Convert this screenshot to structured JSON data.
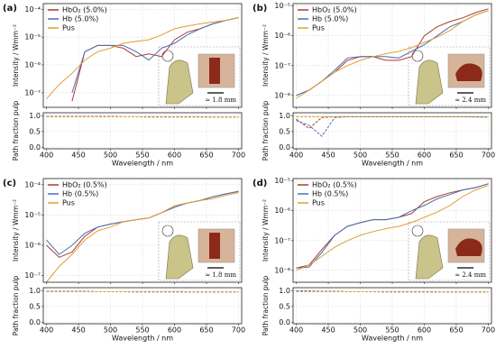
{
  "chart_data": [
    {
      "type": "line",
      "panel_label": "(a)",
      "ylabel": "Intensity / Wmm⁻²",
      "annotation": "≈ 1.8 mm",
      "log_y": true,
      "grid": true,
      "legend": "upper left",
      "x": [
        400,
        420,
        440,
        460,
        480,
        500,
        520,
        540,
        560,
        580,
        600,
        620,
        640,
        660,
        680,
        700
      ],
      "xlim": [
        395,
        705
      ],
      "xticks": [
        400,
        450,
        500,
        550,
        600,
        650,
        700
      ],
      "ylim": [
        3e-08,
        0.00016
      ],
      "yticks": [
        {
          "value": 1e-07,
          "label": "10⁻⁷"
        },
        {
          "value": 1e-06,
          "label": "10⁻⁶"
        },
        {
          "value": 1e-05,
          "label": "10⁻⁵"
        },
        {
          "value": 0.0001,
          "label": "10⁻⁴"
        }
      ],
      "series": [
        {
          "name": "HbO₂ (5.0%)",
          "color": "#b03a2e",
          "values": [
            null,
            null,
            5e-08,
            3e-06,
            5e-06,
            5e-06,
            4e-06,
            2e-06,
            2.5e-06,
            2e-06,
            8e-06,
            1.5e-05,
            2e-05,
            3e-05,
            4e-05,
            5e-05
          ]
        },
        {
          "name": "Hb (5.0%)",
          "color": "#4a6fb5",
          "values": [
            null,
            null,
            1e-07,
            3e-06,
            5e-06,
            5e-06,
            5e-06,
            3e-06,
            1.5e-06,
            4e-06,
            6e-06,
            1.2e-05,
            2e-05,
            3e-05,
            4e-05,
            5e-05
          ]
        },
        {
          "name": "Pus",
          "color": "#e0a030",
          "values": [
            6e-08,
            2e-07,
            5e-07,
            1.5e-06,
            3e-06,
            4e-06,
            6e-06,
            7e-06,
            8e-06,
            1.2e-05,
            2e-05,
            2.5e-05,
            3e-05,
            3.5e-05,
            4e-05,
            5e-05
          ]
        }
      ]
    },
    {
      "type": "line",
      "ylabel": "Path fraction pulp",
      "xlabel": "Wavelength / nm",
      "grid": true,
      "x": [
        400,
        420,
        440,
        460,
        480,
        500,
        520,
        540,
        560,
        580,
        600,
        620,
        640,
        660,
        680,
        700
      ],
      "xlim": [
        395,
        705
      ],
      "xticks": [
        400,
        450,
        500,
        550,
        600,
        650,
        700
      ],
      "ylim": [
        -0.05,
        1.1
      ],
      "yticks": [
        {
          "value": 0,
          "label": "0.0"
        },
        0.5,
        {
          "value": 1,
          "label": "1.0"
        }
      ],
      "series": [
        {
          "color": "#b03a2e",
          "values": [
            0.98,
            0.98,
            0.98,
            0.98,
            0.98,
            0.98,
            0.97,
            0.97,
            0.97,
            0.97,
            0.97,
            0.97,
            0.97,
            0.96,
            0.96,
            0.96
          ]
        },
        {
          "color": "#4a6fb5",
          "values": [
            0.98,
            0.98,
            0.98,
            0.98,
            0.98,
            0.98,
            0.97,
            0.97,
            0.97,
            0.97,
            0.97,
            0.97,
            0.97,
            0.96,
            0.96,
            0.96
          ]
        },
        {
          "color": "#e0a030",
          "values": [
            0.97,
            0.97,
            0.97,
            0.97,
            0.97,
            0.97,
            0.97,
            0.97,
            0.96,
            0.96,
            0.96,
            0.96,
            0.96,
            0.96,
            0.96,
            0.96
          ]
        }
      ]
    },
    {
      "type": "line",
      "panel_label": "(b)",
      "ylabel": "Intensity / Wmm⁻²",
      "annotation": "≈ 2.4 mm",
      "log_y": true,
      "grid": true,
      "legend": "upper left",
      "x": [
        400,
        420,
        440,
        460,
        480,
        500,
        520,
        540,
        560,
        580,
        600,
        620,
        640,
        660,
        680,
        700
      ],
      "xlim": [
        395,
        705
      ],
      "xticks": [
        400,
        450,
        500,
        550,
        600,
        650,
        700
      ],
      "ylim": [
        4e-09,
        1.2e-05
      ],
      "yticks": [
        {
          "value": 1e-08,
          "label": "10⁻⁸"
        },
        {
          "value": 1e-07,
          "label": "10⁻⁷"
        },
        {
          "value": 1e-06,
          "label": "10⁻⁶"
        },
        {
          "value": 1e-05,
          "label": "10⁻⁵"
        }
      ],
      "series": [
        {
          "name": "HbO₂ (5.0%)",
          "color": "#b03a2e",
          "values": [
            1e-08,
            1.5e-08,
            3e-08,
            6e-08,
            1.5e-07,
            2e-07,
            2e-07,
            1.5e-07,
            1.5e-07,
            2e-07,
            1e-06,
            2e-06,
            3e-06,
            4e-06,
            6e-06,
            8e-06
          ]
        },
        {
          "name": "Hb (5.0%)",
          "color": "#4a6fb5",
          "values": [
            1e-08,
            1.5e-08,
            3e-08,
            7e-08,
            1.8e-07,
            2e-07,
            2e-07,
            2e-07,
            1.8e-07,
            3e-07,
            5e-07,
            1e-06,
            2e-06,
            3e-06,
            5e-06,
            7e-06
          ]
        },
        {
          "name": "Pus",
          "color": "#e0a030",
          "values": [
            8e-09,
            1.5e-08,
            3e-08,
            6e-08,
            1e-07,
            1.5e-07,
            2e-07,
            2.5e-07,
            3e-07,
            4e-07,
            6e-07,
            9e-07,
            1.5e-06,
            3e-06,
            5e-06,
            7e-06
          ]
        }
      ]
    },
    {
      "type": "line",
      "ylabel": "Path fraction pulp",
      "xlabel": "Wavelength / nm",
      "grid": true,
      "x": [
        400,
        420,
        440,
        460,
        480,
        500,
        520,
        540,
        560,
        580,
        600,
        620,
        640,
        660,
        680,
        700
      ],
      "xlim": [
        395,
        705
      ],
      "xticks": [
        400,
        450,
        500,
        550,
        600,
        650,
        700
      ],
      "ylim": [
        -0.05,
        1.1
      ],
      "yticks": [
        {
          "value": 0,
          "label": "0.0"
        },
        0.5,
        {
          "value": 1,
          "label": "1.0"
        }
      ],
      "series": [
        {
          "color": "#b03a2e",
          "values": [
            0.9,
            0.6,
            0.95,
            0.97,
            0.97,
            0.97,
            0.97,
            0.97,
            0.97,
            0.97,
            0.97,
            0.97,
            0.97,
            0.97,
            0.97,
            0.96
          ]
        },
        {
          "color": "#4a6fb5",
          "values": [
            0.85,
            0.7,
            0.35,
            0.95,
            0.97,
            0.97,
            0.97,
            0.97,
            0.97,
            0.97,
            0.97,
            0.97,
            0.97,
            0.97,
            0.97,
            0.96
          ]
        },
        {
          "color": "#e0a030",
          "values": [
            0.97,
            0.97,
            0.97,
            0.97,
            0.97,
            0.97,
            0.97,
            0.97,
            0.97,
            0.97,
            0.97,
            0.97,
            0.97,
            0.97,
            0.96,
            0.96
          ]
        }
      ]
    },
    {
      "type": "line",
      "panel_label": "(c)",
      "ylabel": "Intensity / Wmm⁻²",
      "annotation": "≈ 1.8 mm",
      "log_y": true,
      "grid": true,
      "legend": "upper left",
      "x": [
        400,
        420,
        440,
        460,
        480,
        500,
        520,
        540,
        560,
        580,
        600,
        620,
        640,
        660,
        680,
        700
      ],
      "xlim": [
        395,
        705
      ],
      "xticks": [
        400,
        450,
        500,
        550,
        600,
        650,
        700
      ],
      "ylim": [
        6e-08,
        0.00016
      ],
      "yticks": [
        {
          "value": 1e-07,
          "label": "10⁻⁷"
        },
        {
          "value": 1e-06,
          "label": "10⁻⁶"
        },
        {
          "value": 1e-05,
          "label": "10⁻⁵"
        },
        {
          "value": 0.0001,
          "label": "10⁻⁴"
        }
      ],
      "series": [
        {
          "name": "HbO₂ (0.5%)",
          "color": "#b03a2e",
          "values": [
            1e-06,
            4e-07,
            6e-07,
            2e-06,
            4e-06,
            5e-06,
            6e-06,
            7e-06,
            8e-06,
            1.2e-05,
            2e-05,
            2.5e-05,
            3e-05,
            4e-05,
            5e-05,
            6e-05
          ]
        },
        {
          "name": "Hb (0.5%)",
          "color": "#4a6fb5",
          "values": [
            1.5e-06,
            5e-07,
            1e-06,
            2.5e-06,
            4e-06,
            5e-06,
            6e-06,
            7e-06,
            8e-06,
            1.2e-05,
            1.8e-05,
            2.5e-05,
            3e-05,
            4e-05,
            5e-05,
            6e-05
          ]
        },
        {
          "name": "Pus",
          "color": "#e0a030",
          "values": [
            6e-08,
            2e-07,
            5e-07,
            1.5e-06,
            3e-06,
            4e-06,
            6e-06,
            7e-06,
            8e-06,
            1.2e-05,
            2e-05,
            2.5e-05,
            3e-05,
            3.5e-05,
            4.5e-05,
            5.5e-05
          ]
        }
      ]
    },
    {
      "type": "line",
      "ylabel": "Path fraction pulp",
      "xlabel": "Wavelength / nm",
      "grid": true,
      "x": [
        400,
        420,
        440,
        460,
        480,
        500,
        520,
        540,
        560,
        580,
        600,
        620,
        640,
        660,
        680,
        700
      ],
      "xlim": [
        395,
        705
      ],
      "xticks": [
        400,
        450,
        500,
        550,
        600,
        650,
        700
      ],
      "ylim": [
        -0.05,
        1.1
      ],
      "yticks": [
        {
          "value": 0,
          "label": "0.0"
        },
        0.5,
        {
          "value": 1,
          "label": "1.0"
        }
      ],
      "series": [
        {
          "color": "#b03a2e",
          "values": [
            0.98,
            0.98,
            0.98,
            0.98,
            0.97,
            0.97,
            0.97,
            0.97,
            0.97,
            0.97,
            0.97,
            0.96,
            0.96,
            0.96,
            0.96,
            0.96
          ]
        },
        {
          "color": "#4a6fb5",
          "values": [
            0.98,
            0.98,
            0.98,
            0.98,
            0.97,
            0.97,
            0.97,
            0.97,
            0.97,
            0.97,
            0.97,
            0.96,
            0.96,
            0.96,
            0.96,
            0.96
          ]
        },
        {
          "color": "#e0a030",
          "values": [
            0.97,
            0.97,
            0.97,
            0.97,
            0.97,
            0.97,
            0.97,
            0.96,
            0.96,
            0.96,
            0.96,
            0.96,
            0.96,
            0.96,
            0.96,
            0.96
          ]
        }
      ]
    },
    {
      "type": "line",
      "panel_label": "(d)",
      "ylabel": "Intensity / Wmm⁻²",
      "annotation": "≈ 2.4 mm",
      "log_y": true,
      "grid": true,
      "legend": "upper left",
      "x": [
        400,
        420,
        440,
        460,
        480,
        500,
        520,
        540,
        560,
        580,
        600,
        620,
        640,
        660,
        680,
        700
      ],
      "xlim": [
        395,
        705
      ],
      "xticks": [
        400,
        450,
        500,
        550,
        600,
        650,
        700
      ],
      "ylim": [
        4e-09,
        1.2e-05
      ],
      "yticks": [
        {
          "value": 1e-08,
          "label": "10⁻⁸"
        },
        {
          "value": 1e-07,
          "label": "10⁻⁷"
        },
        {
          "value": 1e-06,
          "label": "10⁻⁶"
        },
        {
          "value": 1e-05,
          "label": "10⁻⁵"
        }
      ],
      "series": [
        {
          "name": "HbO₂ (0.5%)",
          "color": "#b03a2e",
          "values": [
            1.2e-08,
            1.5e-08,
            5e-08,
            1.5e-07,
            3e-07,
            4e-07,
            5e-07,
            5e-07,
            6e-07,
            8e-07,
            2e-06,
            3e-06,
            4e-06,
            5e-06,
            6e-06,
            8e-06
          ]
        },
        {
          "name": "Hb (0.5%)",
          "color": "#4a6fb5",
          "values": [
            1.2e-08,
            1.3e-08,
            4e-08,
            1.5e-07,
            3e-07,
            4e-07,
            5e-07,
            5e-07,
            6e-07,
            1e-06,
            1.5e-06,
            2.5e-06,
            3.5e-06,
            5e-06,
            6e-06,
            8e-06
          ]
        },
        {
          "name": "Pus",
          "color": "#e0a030",
          "values": [
            1e-08,
            1.5e-08,
            3e-08,
            6e-08,
            1e-07,
            1.5e-07,
            2e-07,
            2.5e-07,
            3e-07,
            4e-07,
            6e-07,
            9e-07,
            1.5e-06,
            3e-06,
            5e-06,
            7e-06
          ]
        }
      ]
    },
    {
      "type": "line",
      "ylabel": "Path fraction pulp",
      "xlabel": "Wavelength / nm",
      "grid": true,
      "x": [
        400,
        420,
        440,
        460,
        480,
        500,
        520,
        540,
        560,
        580,
        600,
        620,
        640,
        660,
        680,
        700
      ],
      "xlim": [
        395,
        705
      ],
      "xticks": [
        400,
        450,
        500,
        550,
        600,
        650,
        700
      ],
      "ylim": [
        -0.05,
        1.1
      ],
      "yticks": [
        {
          "value": 0,
          "label": "0.0"
        },
        0.5,
        {
          "value": 1,
          "label": "1.0"
        }
      ],
      "series": [
        {
          "color": "#b03a2e",
          "values": [
            0.99,
            0.99,
            0.98,
            0.98,
            0.97,
            0.97,
            0.97,
            0.97,
            0.97,
            0.97,
            0.97,
            0.96,
            0.96,
            0.96,
            0.96,
            0.96
          ]
        },
        {
          "color": "#4a6fb5",
          "values": [
            0.99,
            0.99,
            0.98,
            0.98,
            0.97,
            0.97,
            0.97,
            0.97,
            0.97,
            0.97,
            0.97,
            0.96,
            0.96,
            0.96,
            0.96,
            0.96
          ]
        },
        {
          "color": "#e0a030",
          "values": [
            0.97,
            0.97,
            0.97,
            0.97,
            0.97,
            0.97,
            0.97,
            0.96,
            0.96,
            0.96,
            0.96,
            0.96,
            0.96,
            0.96,
            0.96,
            0.96
          ]
        }
      ]
    }
  ]
}
